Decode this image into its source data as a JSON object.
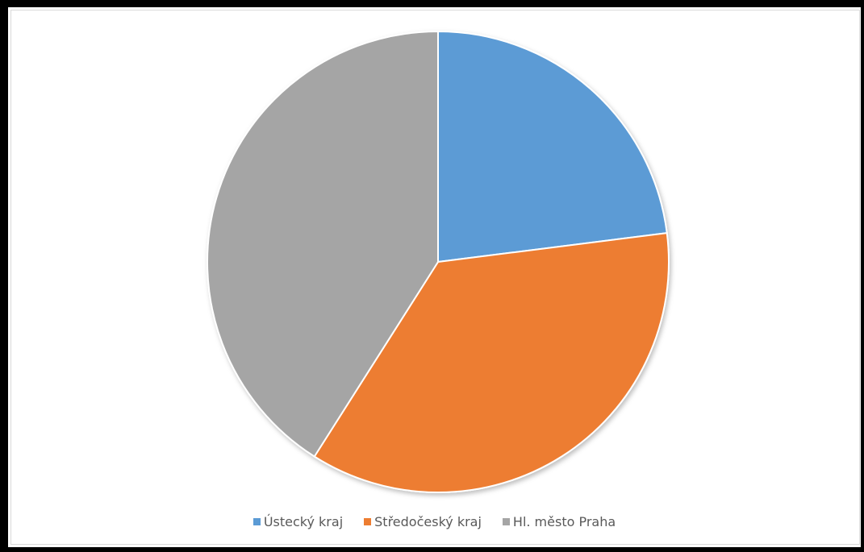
{
  "chart_data": {
    "type": "pie",
    "title": "",
    "series": [
      {
        "values": [
          23,
          36,
          41
        ]
      }
    ],
    "categories": [
      "Ústecký kraj",
      "Středočeský kraj",
      "Hl. město Praha"
    ],
    "colors": [
      "#5b9bd5",
      "#ed7d31",
      "#a5a5a5"
    ],
    "legend_position": "bottom",
    "start_angle_deg": 0,
    "direction": "clockwise"
  }
}
